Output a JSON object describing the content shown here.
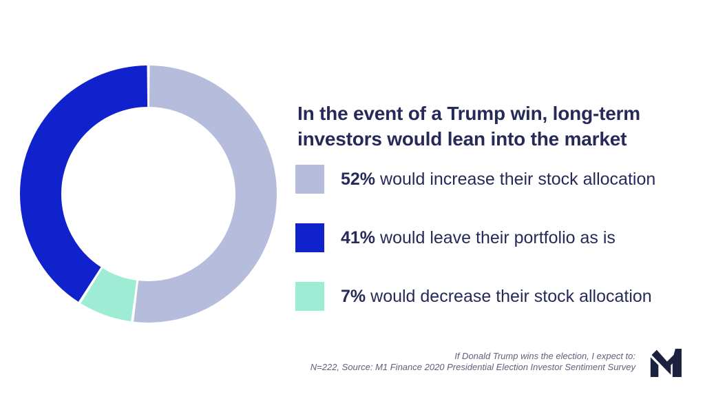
{
  "title": {
    "full": "In the event of a Trump win, long-term investors would lean into the market",
    "lines": [
      "In the event of a Trump win, long-term",
      "investors would lean into the market"
    ]
  },
  "legend": {
    "items": [
      {
        "pct": "52%",
        "text": "would increase their stock allocation",
        "color": "#b6bcdc"
      },
      {
        "pct": "41%",
        "text": "would leave their portfolio as is",
        "color": "#1022cc"
      },
      {
        "pct": "7%",
        "text": "would decrease their stock allocation",
        "color": "#9fecd4"
      }
    ]
  },
  "chart_data": {
    "type": "pie",
    "subtype": "donut",
    "title": "In the event of a Trump win, long-term investors would lean into the market",
    "slices": [
      {
        "label": "would increase their stock allocation",
        "value_pct": 52,
        "color": "#b6bcdc"
      },
      {
        "label": "would leave their portfolio as is",
        "value_pct": 41,
        "color": "#1022cc"
      },
      {
        "label": "would decrease their stock allocation",
        "value_pct": 7,
        "color": "#9fecd4"
      }
    ],
    "ring_order": [
      0,
      2,
      1
    ],
    "start_angle": "12-o-clock",
    "direction": "clockwise",
    "segment_gap_pct": 0.35,
    "hole_color": "#ffffff",
    "legend_position": "right"
  },
  "footnote": {
    "line1": "If Donald Trump wins the election, I expect to:",
    "line2": "N=222, Source: M1 Finance 2020 Presidential Election Investor Sentiment Survey"
  },
  "logo": {
    "name": "M1 Finance logo",
    "glyph": "M1"
  },
  "theme": {
    "background": "#ffffff",
    "navy_text": "#262a58",
    "footnote_color": "#5e5f7d",
    "logo_color": "#1d2140"
  }
}
